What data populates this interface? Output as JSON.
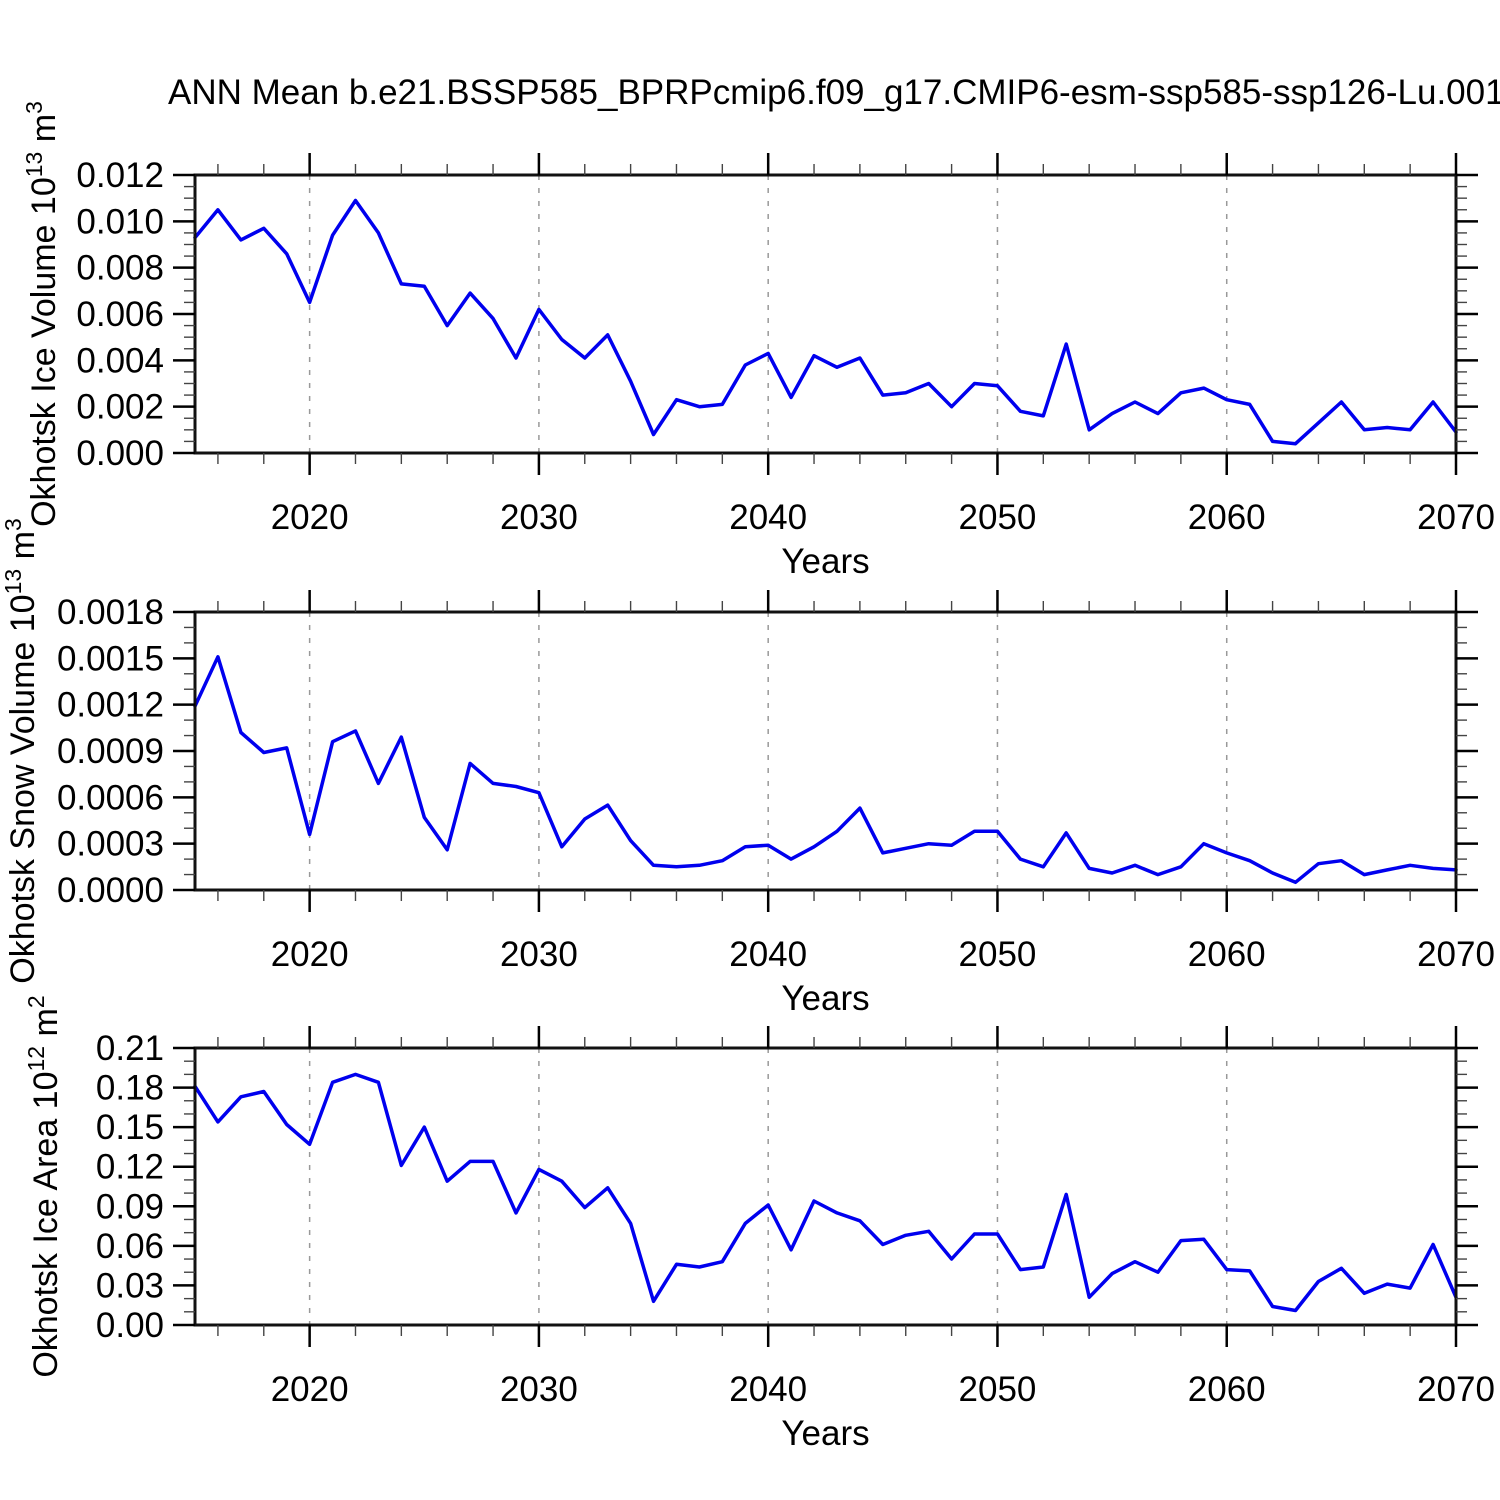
{
  "title": "ANN Mean b.e21.BSSP585_BPRPcmip6.f09_g17.CMIP6-esm-ssp585-ssp126-Lu.001",
  "colors": {
    "line": "#0000ee",
    "axis": "#111111",
    "major_tick": "#000000",
    "minor_tick": "#444444",
    "grid": "#999999",
    "text": "#000000",
    "background": "#ffffff"
  },
  "x_axis": {
    "label": "Years",
    "range": [
      2015,
      2070
    ],
    "major_ticks": [
      2020,
      2030,
      2040,
      2050,
      2060,
      2070
    ],
    "major_tick_labels": [
      "2020",
      "2030",
      "2040",
      "2050",
      "2060",
      "2070"
    ],
    "minor_step": 2,
    "gridlines": [
      2020,
      2030,
      2040,
      2050,
      2060
    ]
  },
  "years": [
    2015,
    2016,
    2017,
    2018,
    2019,
    2020,
    2021,
    2022,
    2023,
    2024,
    2025,
    2026,
    2027,
    2028,
    2029,
    2030,
    2031,
    2032,
    2033,
    2034,
    2035,
    2036,
    2037,
    2038,
    2039,
    2040,
    2041,
    2042,
    2043,
    2044,
    2045,
    2046,
    2047,
    2048,
    2049,
    2050,
    2051,
    2052,
    2053,
    2054,
    2055,
    2056,
    2057,
    2058,
    2059,
    2060,
    2061,
    2062,
    2063,
    2064,
    2065,
    2066,
    2067,
    2068,
    2069,
    2070
  ],
  "chart_data": [
    {
      "type": "line",
      "name": "okhotsk-ice-volume",
      "ylabel": {
        "text": "Okhotsk Ice Volume 10",
        "sup": "13",
        "unit": " m",
        "unit_sup": "3"
      },
      "xlabel": "Years",
      "ylim": [
        0.0,
        0.012
      ],
      "y_tick_values": [
        0.012,
        0.01,
        0.008,
        0.006,
        0.004,
        0.002,
        0.0
      ],
      "y_tick_labels": [
        "0.012",
        "0.010",
        "0.008",
        "0.006",
        "0.004",
        "0.002",
        "0.000"
      ],
      "y_minor_step": 0.0005,
      "grid": "x-dashed",
      "values": [
        0.0093,
        0.0105,
        0.0092,
        0.0097,
        0.0086,
        0.0065,
        0.0094,
        0.0109,
        0.0095,
        0.0073,
        0.0072,
        0.0055,
        0.0069,
        0.0058,
        0.0041,
        0.0062,
        0.0049,
        0.0041,
        0.0051,
        0.0031,
        0.0008,
        0.0023,
        0.002,
        0.0021,
        0.0038,
        0.0043,
        0.0024,
        0.0042,
        0.0037,
        0.0041,
        0.0025,
        0.0026,
        0.003,
        0.002,
        0.003,
        0.0029,
        0.0018,
        0.0016,
        0.0047,
        0.001,
        0.0017,
        0.0022,
        0.0017,
        0.0026,
        0.0028,
        0.0023,
        0.0021,
        0.0005,
        0.0004,
        0.0013,
        0.0022,
        0.001,
        0.0011,
        0.001,
        0.0022,
        0.0009
      ]
    },
    {
      "type": "line",
      "name": "okhotsk-snow-volume",
      "ylabel": {
        "text": "Okhotsk Snow Volume 10",
        "sup": "13",
        "unit": " m",
        "unit_sup": "3"
      },
      "xlabel": "Years",
      "ylim": [
        0.0,
        0.0018
      ],
      "y_tick_values": [
        0.0018,
        0.0015,
        0.0012,
        0.0009,
        0.0006,
        0.0003,
        0.0
      ],
      "y_tick_labels": [
        "0.0018",
        "0.0015",
        "0.0012",
        "0.0009",
        "0.0006",
        "0.0003",
        "0.0000"
      ],
      "y_minor_step": 0.0001,
      "grid": "x-dashed",
      "values": [
        0.00119,
        0.00151,
        0.00102,
        0.00089,
        0.00092,
        0.00036,
        0.00096,
        0.00103,
        0.00069,
        0.00099,
        0.00047,
        0.00026,
        0.00082,
        0.00069,
        0.00067,
        0.00063,
        0.00028,
        0.00046,
        0.00055,
        0.00032,
        0.00016,
        0.00015,
        0.00016,
        0.00019,
        0.00028,
        0.00029,
        0.0002,
        0.00028,
        0.00038,
        0.00053,
        0.00024,
        0.00027,
        0.0003,
        0.00029,
        0.00038,
        0.00038,
        0.0002,
        0.00015,
        0.00037,
        0.00014,
        0.00011,
        0.00016,
        0.0001,
        0.00015,
        0.0003,
        0.00024,
        0.00019,
        0.00011,
        5e-05,
        0.00017,
        0.00019,
        0.0001,
        0.00013,
        0.00016,
        0.00014,
        0.00013
      ]
    },
    {
      "type": "line",
      "name": "okhotsk-ice-area",
      "ylabel": {
        "text": "Okhotsk Ice Area 10",
        "sup": "12",
        "unit": " m",
        "unit_sup": "2"
      },
      "xlabel": "Years",
      "ylim": [
        0.0,
        0.21
      ],
      "y_tick_values": [
        0.21,
        0.18,
        0.15,
        0.12,
        0.09,
        0.06,
        0.03,
        0.0
      ],
      "y_tick_labels": [
        "0.21",
        "0.18",
        "0.15",
        "0.12",
        "0.09",
        "0.06",
        "0.03",
        "0.00"
      ],
      "y_minor_step": 0.01,
      "grid": "x-dashed",
      "values": [
        0.181,
        0.154,
        0.173,
        0.177,
        0.152,
        0.137,
        0.184,
        0.19,
        0.184,
        0.121,
        0.15,
        0.109,
        0.124,
        0.124,
        0.085,
        0.118,
        0.109,
        0.089,
        0.104,
        0.077,
        0.018,
        0.046,
        0.044,
        0.048,
        0.077,
        0.091,
        0.057,
        0.094,
        0.085,
        0.079,
        0.061,
        0.068,
        0.071,
        0.05,
        0.069,
        0.069,
        0.042,
        0.044,
        0.099,
        0.021,
        0.039,
        0.048,
        0.04,
        0.064,
        0.065,
        0.042,
        0.041,
        0.014,
        0.011,
        0.033,
        0.043,
        0.024,
        0.031,
        0.028,
        0.061,
        0.021
      ]
    }
  ]
}
